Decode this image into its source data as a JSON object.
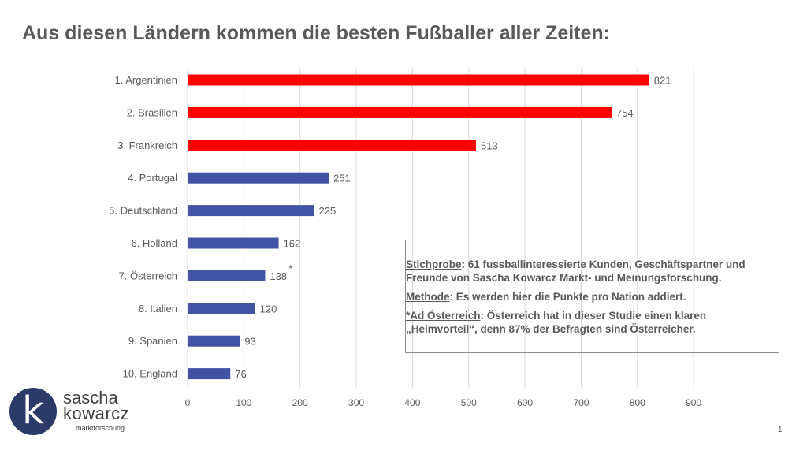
{
  "title": "Aus diesen Ländern kommen die besten Fußballer aller Zeiten:",
  "chart_data": {
    "type": "bar",
    "orientation": "horizontal",
    "categories": [
      "1. Argentinien",
      "2. Brasilien",
      "3. Frankreich",
      "4. Portugal",
      "5. Deutschland",
      "6. Holland",
      "7. Österreich",
      "8. Italien",
      "9. Spanien",
      "10. England"
    ],
    "values": [
      821,
      754,
      513,
      251,
      225,
      162,
      138,
      120,
      93,
      76
    ],
    "value_labels": [
      "821",
      "754",
      "513",
      "251",
      "225",
      "162",
      "138",
      "120",
      "93",
      "76"
    ],
    "bar_colors": [
      "#ff0000",
      "#ff0000",
      "#ff0000",
      "#4253a3",
      "#4253a3",
      "#4253a3",
      "#4253a3",
      "#4253a3",
      "#4253a3",
      "#4253a3"
    ],
    "asterisk_marker": "*",
    "asterisk_category_index": 6,
    "xlim": [
      0,
      900
    ],
    "xticks": [
      0,
      100,
      200,
      300,
      400,
      500,
      600,
      700,
      800,
      900
    ],
    "grid": true
  },
  "note": {
    "sample_label": "Stichprobe",
    "sample_text": ": 61 fussballinteressierte Kunden, Geschäftspartner und Freunde von Sascha Kowarcz Markt- und Meinungsforschung.",
    "method_label": "Methode",
    "method_text": ": Es werden hier die Punkte pro Nation addiert.",
    "austria_label": "*Ad Österreich",
    "austria_text": ": Österreich hat in dieser Studie einen klaren „Heimvorteil“, denn 87% der Befragten sind Österreicher."
  },
  "logo": {
    "letter": "k",
    "name_line1": "sascha",
    "name_line2": "kowarcz",
    "subtitle": "marktforschung",
    "color": "#2b3a67"
  },
  "page_number": "1"
}
